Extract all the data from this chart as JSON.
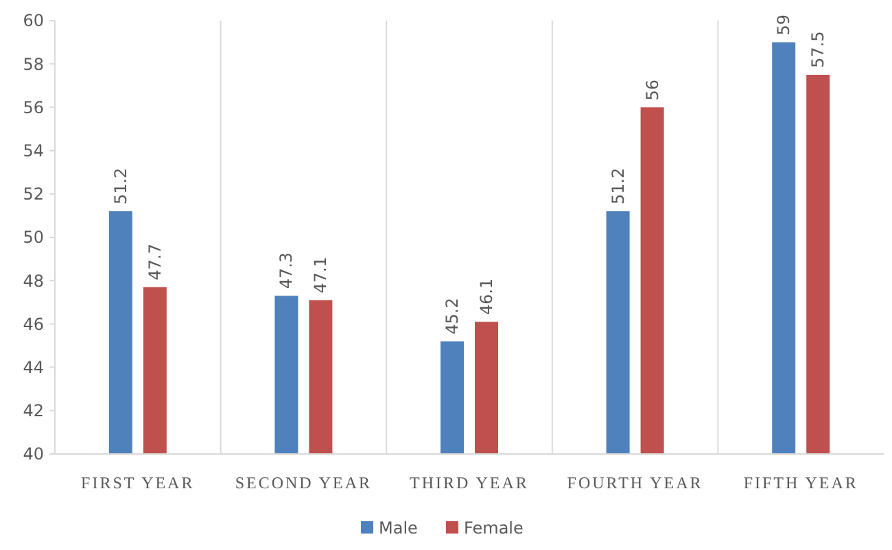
{
  "chart_data": {
    "type": "bar",
    "categories": [
      "FIRST YEAR",
      "SECOND YEAR",
      "THIRD YEAR",
      "FOURTH YEAR",
      "FIFTH YEAR"
    ],
    "series": [
      {
        "name": "Male",
        "color": "#4f81bd",
        "values": [
          51.2,
          47.3,
          45.2,
          51.2,
          59
        ]
      },
      {
        "name": "Female",
        "color": "#c0504d",
        "values": [
          47.7,
          47.1,
          46.1,
          56,
          57.5
        ]
      }
    ],
    "ylim": [
      40,
      60
    ],
    "yticks": [
      40,
      42,
      44,
      46,
      48,
      50,
      52,
      54,
      56,
      58,
      60
    ],
    "grid": "x",
    "legend": "bottom",
    "data_labels": true
  }
}
